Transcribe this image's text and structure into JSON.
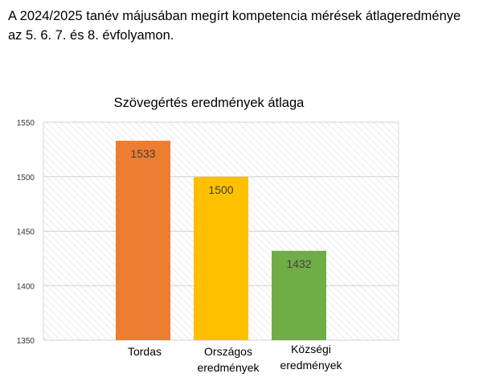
{
  "heading": {
    "line1": "A 2024/2025 tanév májusában megírt kompetencia mérések átlageredménye",
    "line2": "az 5. 6. 7. és 8. évfolyamon."
  },
  "chart_data": {
    "type": "bar",
    "title": "Szövegértés eredmények átlaga",
    "categories": [
      [
        "Tordas"
      ],
      [
        "Országos",
        "eredmények"
      ],
      [
        "Községi",
        "eredmények"
      ]
    ],
    "values": [
      1533,
      1500,
      1432
    ],
    "colors": [
      "#ed7d31",
      "#ffc000",
      "#70ad47"
    ],
    "ylim": [
      1350,
      1550
    ],
    "yticks": [
      1350,
      1400,
      1450,
      1500,
      1550
    ],
    "grid": true,
    "xlabel": "",
    "ylabel": ""
  }
}
